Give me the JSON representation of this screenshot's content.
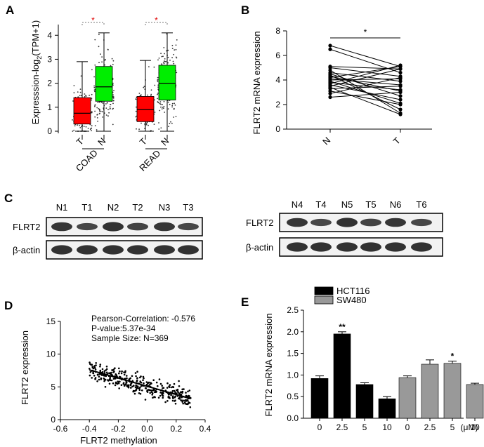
{
  "panels": {
    "a": "A",
    "b": "B",
    "c": "C",
    "d": "D",
    "e": "E"
  },
  "chart_data": [
    {
      "id": "A",
      "type": "box",
      "ylabel_main": "Expresssion-log",
      "ylabel_sub": "2",
      "ylabel_tail": "(TPM+1)",
      "yticks": [
        0,
        1,
        2,
        3,
        4
      ],
      "ylim": [
        0,
        4.3
      ],
      "groups": [
        {
          "name": "COAD",
          "sig": "*",
          "boxes": [
            {
              "label": "T",
              "color": "#ff0000",
              "q1": 0.3,
              "median": 0.75,
              "q3": 1.4,
              "whisker_low": 0.0,
              "whisker_high": 2.9
            },
            {
              "label": "N",
              "color": "#00ee00",
              "q1": 1.25,
              "median": 1.85,
              "q3": 2.7,
              "whisker_low": 0.0,
              "whisker_high": 4.1
            }
          ]
        },
        {
          "name": "READ",
          "sig": "*",
          "boxes": [
            {
              "label": "T",
              "color": "#ff0000",
              "q1": 0.4,
              "median": 0.9,
              "q3": 1.45,
              "whisker_low": 0.0,
              "whisker_high": 2.95
            },
            {
              "label": "N",
              "color": "#00ee00",
              "q1": 1.3,
              "median": 2.0,
              "q3": 2.75,
              "whisker_low": 0.0,
              "whisker_high": 4.1
            }
          ]
        }
      ]
    },
    {
      "id": "B",
      "type": "paired-line",
      "ylabel": "FLRT2 mRNA expression",
      "categories": [
        "N",
        "T"
      ],
      "ylim": [
        0,
        8
      ],
      "yticks": [
        0,
        2,
        4,
        6,
        8
      ],
      "sig": "*",
      "pairs": [
        [
          6.8,
          5.1
        ],
        [
          6.5,
          4.6
        ],
        [
          5.1,
          4.9
        ],
        [
          5.0,
          4.3
        ],
        [
          4.8,
          1.3
        ],
        [
          4.6,
          3.9
        ],
        [
          4.5,
          2.7
        ],
        [
          4.4,
          1.6
        ],
        [
          4.3,
          3.1
        ],
        [
          4.2,
          5.1
        ],
        [
          4.1,
          3.6
        ],
        [
          4.0,
          4.1
        ],
        [
          3.9,
          2.1
        ],
        [
          3.8,
          3.2
        ],
        [
          3.7,
          5.2
        ],
        [
          3.6,
          2.4
        ],
        [
          3.5,
          4.9
        ],
        [
          3.4,
          1.2
        ],
        [
          3.3,
          3.5
        ],
        [
          3.1,
          2.0
        ],
        [
          2.9,
          4.2
        ],
        [
          2.6,
          3.0
        ]
      ]
    },
    {
      "id": "D",
      "type": "scatter",
      "xlabel": "FLRT2 methylation",
      "ylabel": "FLRT2 expression",
      "xlim": [
        -0.6,
        0.4
      ],
      "ylim": [
        0,
        15
      ],
      "xticks": [
        "-0.6",
        "-0.4",
        "-0.2",
        "0.0",
        "0.2",
        "0.4"
      ],
      "yticks": [
        "0",
        "5",
        "10",
        "15"
      ],
      "stats": [
        "Pearson-Correlation: -0.576",
        "P-value:5.37e-34",
        "Sample Size: N=369"
      ],
      "fit": {
        "x0": -0.4,
        "y0": 7.6,
        "x1": 0.3,
        "y1": 3.2
      },
      "n": 369
    },
    {
      "id": "E",
      "type": "bar",
      "ylabel": "FLRT2 mRNA expression",
      "ylim": [
        0,
        2.5
      ],
      "yticks": [
        "0.0",
        "0.5",
        "1.0",
        "1.5",
        "2.0",
        "2.5"
      ],
      "unit": "(μM)",
      "series": [
        {
          "name": "HCT116",
          "color": "#000000",
          "categories": [
            "0",
            "2.5",
            "5",
            "10"
          ],
          "values": [
            0.92,
            1.95,
            0.78,
            0.45
          ],
          "errors": [
            0.06,
            0.05,
            0.04,
            0.05
          ],
          "sig": [
            "",
            "**",
            "",
            ""
          ]
        },
        {
          "name": "SW480",
          "color": "#999999",
          "categories": [
            "0",
            "2.5",
            "5",
            "10"
          ],
          "values": [
            0.94,
            1.25,
            1.27,
            0.78
          ],
          "errors": [
            0.04,
            0.1,
            0.05,
            0.03
          ],
          "sig": [
            "",
            "",
            "*",
            ""
          ]
        }
      ]
    }
  ],
  "blot": {
    "left": {
      "lanes": [
        "N1",
        "T1",
        "N2",
        "T2",
        "N3",
        "T3"
      ],
      "rows": [
        "FLRT2",
        "β-actin"
      ]
    },
    "right": {
      "lanes": [
        "N4",
        "T4",
        "N5",
        "T5",
        "N6",
        "T6"
      ],
      "rows": [
        "FLRT2",
        "β-actin"
      ]
    }
  }
}
